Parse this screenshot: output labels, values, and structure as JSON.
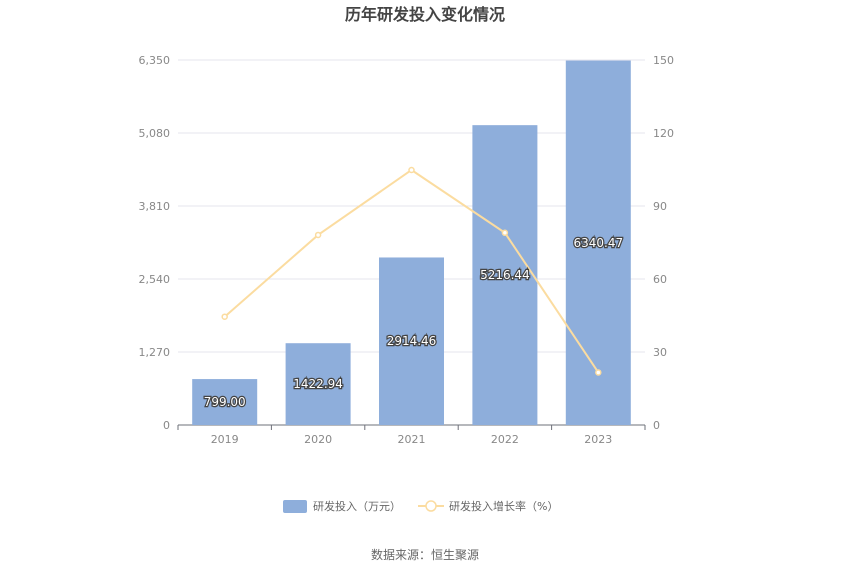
{
  "chart_data": {
    "type": "bar",
    "title": "历年研发投入变化情况",
    "categories": [
      "2019",
      "2020",
      "2021",
      "2022",
      "2023"
    ],
    "series": [
      {
        "name": "研发投入（万元）",
        "type": "bar",
        "axis": "left",
        "values": [
          799.0,
          1422.94,
          2914.46,
          5216.44,
          6340.47
        ],
        "labels": [
          "799.00",
          "1422.94",
          "2914.46",
          "5216.44",
          "6340.47"
        ],
        "color": "#8eaedb"
      },
      {
        "name": "研发投入增长率（%）",
        "type": "line",
        "axis": "right",
        "values": [
          44.5,
          78.1,
          104.8,
          79.0,
          21.6
        ],
        "color": "#fbdca0"
      }
    ],
    "y_left": {
      "min": 0,
      "max": 6350,
      "ticks": [
        0,
        1270,
        2540,
        3810,
        5080,
        6350
      ],
      "tick_labels": [
        "0",
        "1,270",
        "2,540",
        "3,810",
        "5,080",
        "6,350"
      ]
    },
    "y_right": {
      "min": 0,
      "max": 150,
      "ticks": [
        0,
        30,
        60,
        90,
        120,
        150
      ],
      "tick_labels": [
        "0",
        "30",
        "60",
        "90",
        "120",
        "150"
      ]
    },
    "grid": true,
    "legend": "bottom-center",
    "source": "数据来源：恒生聚源"
  }
}
